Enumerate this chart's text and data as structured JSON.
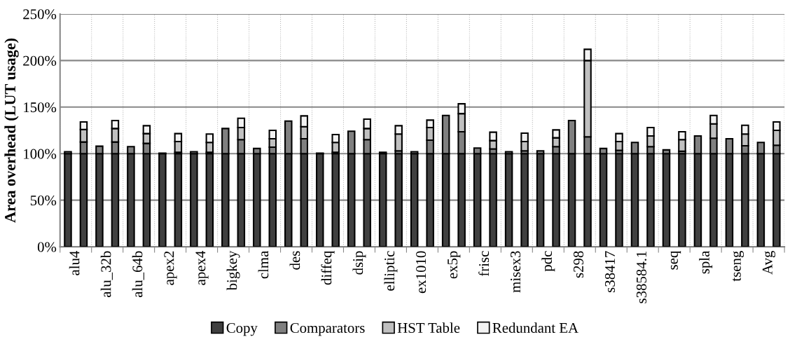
{
  "chart_data": {
    "type": "bar",
    "stacked": true,
    "ylabel": "Area overhead (LUT usage)",
    "categories": [
      "alu4",
      null,
      "alu_32b",
      null,
      "alu_64b",
      null,
      "apex2",
      null,
      "apex4",
      null,
      "bigkey",
      null,
      "clma",
      null,
      "des",
      null,
      "diffeq",
      null,
      "dsip",
      null,
      "elliptic",
      null,
      "ex1010",
      null,
      "ex5p",
      null,
      "frisc",
      null,
      "misex3",
      null,
      "pdc",
      null,
      "s298",
      null,
      "s38417",
      null,
      "s38584.1",
      null,
      "seq",
      null,
      "spla",
      null,
      "tseng",
      null,
      "Avg",
      null
    ],
    "series": [
      {
        "name": "Copy",
        "color": "#404040",
        "values": [
          100,
          100,
          100,
          100,
          100,
          100,
          100,
          100,
          100,
          100,
          100,
          100,
          100,
          100,
          100,
          100,
          100,
          100,
          100,
          100,
          100,
          100,
          100,
          100,
          100,
          100,
          100,
          100,
          100,
          100,
          100,
          100,
          100,
          100,
          100,
          100,
          100,
          100,
          100,
          100,
          100,
          100,
          100,
          100,
          100,
          100
        ]
      },
      {
        "name": "Comparators",
        "color": "#808080",
        "values": [
          2,
          12.5,
          8,
          12.5,
          7.5,
          11,
          0.5,
          1.5,
          2,
          1.5,
          27,
          15,
          5.5,
          7,
          35,
          16,
          0.5,
          1.5,
          24,
          15,
          1.5,
          3,
          2,
          14.5,
          41,
          23.5,
          6,
          5,
          2,
          3,
          3,
          7.5,
          35.5,
          18,
          5.5,
          3.5,
          12,
          7.5,
          4,
          2.5,
          19,
          16.5,
          16,
          8.5,
          12,
          9
        ]
      },
      {
        "name": "HST Table",
        "color": "#c0c0c0",
        "values": [
          null,
          13.5,
          null,
          14.5,
          null,
          10.5,
          null,
          11.5,
          null,
          10.5,
          null,
          13,
          null,
          9,
          null,
          13,
          null,
          10.5,
          null,
          12,
          null,
          18,
          null,
          13.5,
          null,
          19.5,
          null,
          9,
          null,
          10,
          null,
          9.5,
          null,
          82,
          null,
          9.5,
          null,
          11.5,
          null,
          12.5,
          null,
          15.5,
          null,
          12.5,
          null,
          16
        ]
      },
      {
        "name": "Redundant EA",
        "color": "#f2f2f2",
        "values": [
          null,
          8,
          null,
          8.5,
          null,
          8.5,
          null,
          8.5,
          null,
          9,
          null,
          10,
          null,
          9,
          null,
          11.5,
          null,
          8.5,
          null,
          10,
          null,
          9,
          null,
          8,
          null,
          10.5,
          null,
          9,
          null,
          9,
          null,
          8.5,
          null,
          12,
          null,
          8.5,
          null,
          9,
          null,
          8.5,
          null,
          9,
          null,
          9.5,
          null,
          9
        ]
      }
    ],
    "ylim": [
      0,
      250
    ],
    "yticks": [
      {
        "value": 0,
        "label": "0%"
      },
      {
        "value": 50,
        "label": "50%"
      },
      {
        "value": 100,
        "label": "100%"
      },
      {
        "value": 150,
        "label": "150%"
      },
      {
        "value": 200,
        "label": "200%"
      },
      {
        "value": 250,
        "label": "250%"
      }
    ],
    "grid": true,
    "legend": "bottom"
  }
}
